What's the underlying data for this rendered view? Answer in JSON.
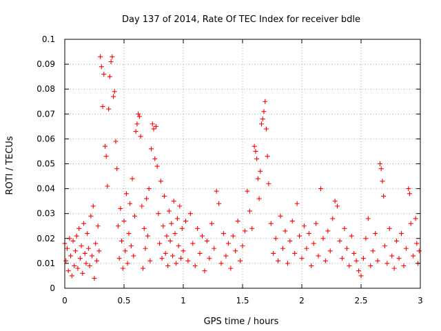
{
  "chart_data": {
    "type": "scatter",
    "title": "Day 137 of 2014, Rate Of TEC Index for receiver bdle",
    "xlabel": "GPS time / hours",
    "ylabel": "ROTI / TECUs",
    "xlim": [
      0,
      3
    ],
    "ylim": [
      0,
      0.1
    ],
    "x_ticks": [
      0,
      0.5,
      1,
      1.5,
      2,
      2.5,
      3
    ],
    "x_tick_labels": [
      "0",
      "0.5",
      "1",
      "1.5",
      "2",
      "2.5",
      "3"
    ],
    "y_ticks": [
      0,
      0.01,
      0.02,
      0.03,
      0.04,
      0.05,
      0.06,
      0.07,
      0.08,
      0.09,
      0.1
    ],
    "y_tick_labels": [
      "0",
      "0.01",
      "0.02",
      "0.03",
      "0.04",
      "0.05",
      "0.06",
      "0.07",
      "0.08",
      "0.09",
      "0.1"
    ],
    "grid": true,
    "marker": "plus",
    "color": "#ff0000",
    "series": [
      {
        "name": "ROTI",
        "points": [
          [
            0.0,
            0.018
          ],
          [
            0.01,
            0.011
          ],
          [
            0.02,
            0.016
          ],
          [
            0.03,
            0.007
          ],
          [
            0.04,
            0.02
          ],
          [
            0.05,
            0.013
          ],
          [
            0.06,
            0.005
          ],
          [
            0.07,
            0.019
          ],
          [
            0.08,
            0.009
          ],
          [
            0.09,
            0.015
          ],
          [
            0.1,
            0.021
          ],
          [
            0.11,
            0.008
          ],
          [
            0.12,
            0.024
          ],
          [
            0.13,
            0.012
          ],
          [
            0.14,
            0.017
          ],
          [
            0.15,
            0.006
          ],
          [
            0.16,
            0.026
          ],
          [
            0.17,
            0.014
          ],
          [
            0.18,
            0.01
          ],
          [
            0.19,
            0.022
          ],
          [
            0.2,
            0.016
          ],
          [
            0.21,
            0.009
          ],
          [
            0.22,
            0.029
          ],
          [
            0.23,
            0.013
          ],
          [
            0.24,
            0.033
          ],
          [
            0.25,
            0.004
          ],
          [
            0.26,
            0.018
          ],
          [
            0.27,
            0.011
          ],
          [
            0.28,
            0.025
          ],
          [
            0.29,
            0.015
          ],
          [
            0.3,
            0.093
          ],
          [
            0.31,
            0.089
          ],
          [
            0.32,
            0.073
          ],
          [
            0.33,
            0.086
          ],
          [
            0.34,
            0.057
          ],
          [
            0.35,
            0.053
          ],
          [
            0.36,
            0.041
          ],
          [
            0.37,
            0.072
          ],
          [
            0.38,
            0.085
          ],
          [
            0.39,
            0.091
          ],
          [
            0.4,
            0.093
          ],
          [
            0.41,
            0.077
          ],
          [
            0.42,
            0.079
          ],
          [
            0.43,
            0.059
          ],
          [
            0.44,
            0.048
          ],
          [
            0.45,
            0.025
          ],
          [
            0.46,
            0.012
          ],
          [
            0.47,
            0.032
          ],
          [
            0.48,
            0.019
          ],
          [
            0.49,
            0.008
          ],
          [
            0.5,
            0.027
          ],
          [
            0.51,
            0.015
          ],
          [
            0.52,
            0.038
          ],
          [
            0.53,
            0.01
          ],
          [
            0.54,
            0.022
          ],
          [
            0.55,
            0.034
          ],
          [
            0.56,
            0.017
          ],
          [
            0.57,
            0.044
          ],
          [
            0.58,
            0.013
          ],
          [
            0.59,
            0.029
          ],
          [
            0.6,
            0.063
          ],
          [
            0.61,
            0.066
          ],
          [
            0.62,
            0.07
          ],
          [
            0.63,
            0.069
          ],
          [
            0.64,
            0.061
          ],
          [
            0.65,
            0.033
          ],
          [
            0.66,
            0.008
          ],
          [
            0.67,
            0.024
          ],
          [
            0.68,
            0.016
          ],
          [
            0.69,
            0.036
          ],
          [
            0.7,
            0.021
          ],
          [
            0.71,
            0.04
          ],
          [
            0.72,
            0.011
          ],
          [
            0.73,
            0.056
          ],
          [
            0.74,
            0.066
          ],
          [
            0.75,
            0.064
          ],
          [
            0.76,
            0.052
          ],
          [
            0.77,
            0.065
          ],
          [
            0.78,
            0.049
          ],
          [
            0.79,
            0.03
          ],
          [
            0.8,
            0.018
          ],
          [
            0.81,
            0.043
          ],
          [
            0.82,
            0.012
          ],
          [
            0.83,
            0.025
          ],
          [
            0.84,
            0.037
          ],
          [
            0.85,
            0.014
          ],
          [
            0.86,
            0.021
          ],
          [
            0.87,
            0.009
          ],
          [
            0.88,
            0.031
          ],
          [
            0.89,
            0.019
          ],
          [
            0.9,
            0.026
          ],
          [
            0.91,
            0.013
          ],
          [
            0.92,
            0.035
          ],
          [
            0.93,
            0.022
          ],
          [
            0.94,
            0.01
          ],
          [
            0.95,
            0.028
          ],
          [
            0.96,
            0.017
          ],
          [
            0.97,
            0.033
          ],
          [
            0.98,
            0.012
          ],
          [
            0.99,
            0.024
          ],
          [
            1.0,
            0.015
          ],
          [
            1.02,
            0.027
          ],
          [
            1.04,
            0.011
          ],
          [
            1.06,
            0.03
          ],
          [
            1.08,
            0.018
          ],
          [
            1.1,
            0.009
          ],
          [
            1.12,
            0.024
          ],
          [
            1.14,
            0.014
          ],
          [
            1.16,
            0.021
          ],
          [
            1.18,
            0.007
          ],
          [
            1.2,
            0.019
          ],
          [
            1.22,
            0.012
          ],
          [
            1.24,
            0.026
          ],
          [
            1.26,
            0.016
          ],
          [
            1.28,
            0.039
          ],
          [
            1.3,
            0.034
          ],
          [
            1.32,
            0.01
          ],
          [
            1.34,
            0.022
          ],
          [
            1.36,
            0.013
          ],
          [
            1.38,
            0.018
          ],
          [
            1.4,
            0.008
          ],
          [
            1.42,
            0.021
          ],
          [
            1.44,
            0.015
          ],
          [
            1.46,
            0.027
          ],
          [
            1.48,
            0.011
          ],
          [
            1.5,
            0.017
          ],
          [
            1.52,
            0.023
          ],
          [
            1.54,
            0.039
          ],
          [
            1.56,
            0.031
          ],
          [
            1.58,
            0.024
          ],
          [
            1.6,
            0.057
          ],
          [
            1.61,
            0.055
          ],
          [
            1.62,
            0.052
          ],
          [
            1.63,
            0.044
          ],
          [
            1.64,
            0.036
          ],
          [
            1.65,
            0.047
          ],
          [
            1.66,
            0.066
          ],
          [
            1.67,
            0.068
          ],
          [
            1.68,
            0.071
          ],
          [
            1.69,
            0.075
          ],
          [
            1.7,
            0.064
          ],
          [
            1.71,
            0.053
          ],
          [
            1.72,
            0.042
          ],
          [
            1.74,
            0.026
          ],
          [
            1.76,
            0.014
          ],
          [
            1.78,
            0.02
          ],
          [
            1.8,
            0.011
          ],
          [
            1.82,
            0.029
          ],
          [
            1.84,
            0.016
          ],
          [
            1.86,
            0.023
          ],
          [
            1.88,
            0.01
          ],
          [
            1.9,
            0.019
          ],
          [
            1.92,
            0.027
          ],
          [
            1.94,
            0.014
          ],
          [
            1.96,
            0.034
          ],
          [
            1.98,
            0.021
          ],
          [
            2.0,
            0.012
          ],
          [
            2.02,
            0.025
          ],
          [
            2.04,
            0.016
          ],
          [
            2.06,
            0.022
          ],
          [
            2.08,
            0.009
          ],
          [
            2.1,
            0.018
          ],
          [
            2.12,
            0.026
          ],
          [
            2.14,
            0.013
          ],
          [
            2.16,
            0.04
          ],
          [
            2.18,
            0.02
          ],
          [
            2.2,
            0.011
          ],
          [
            2.22,
            0.023
          ],
          [
            2.24,
            0.015
          ],
          [
            2.26,
            0.028
          ],
          [
            2.28,
            0.035
          ],
          [
            2.3,
            0.033
          ],
          [
            2.32,
            0.019
          ],
          [
            2.34,
            0.012
          ],
          [
            2.36,
            0.024
          ],
          [
            2.38,
            0.016
          ],
          [
            2.4,
            0.009
          ],
          [
            2.42,
            0.021
          ],
          [
            2.44,
            0.014
          ],
          [
            2.46,
            0.011
          ],
          [
            2.48,
            0.007
          ],
          [
            2.5,
            0.005
          ],
          [
            2.52,
            0.012
          ],
          [
            2.54,
            0.02
          ],
          [
            2.56,
            0.028
          ],
          [
            2.58,
            0.009
          ],
          [
            2.6,
            0.015
          ],
          [
            2.62,
            0.022
          ],
          [
            2.64,
            0.011
          ],
          [
            2.66,
            0.05
          ],
          [
            2.67,
            0.048
          ],
          [
            2.68,
            0.043
          ],
          [
            2.69,
            0.037
          ],
          [
            2.7,
            0.017
          ],
          [
            2.72,
            0.01
          ],
          [
            2.74,
            0.024
          ],
          [
            2.76,
            0.013
          ],
          [
            2.78,
            0.008
          ],
          [
            2.8,
            0.019
          ],
          [
            2.82,
            0.012
          ],
          [
            2.84,
            0.022
          ],
          [
            2.86,
            0.009
          ],
          [
            2.88,
            0.016
          ],
          [
            2.9,
            0.04
          ],
          [
            2.91,
            0.038
          ],
          [
            2.92,
            0.026
          ],
          [
            2.94,
            0.013
          ],
          [
            2.96,
            0.028
          ],
          [
            2.97,
            0.018
          ],
          [
            2.98,
            0.01
          ],
          [
            2.99,
            0.015
          ]
        ]
      }
    ]
  }
}
